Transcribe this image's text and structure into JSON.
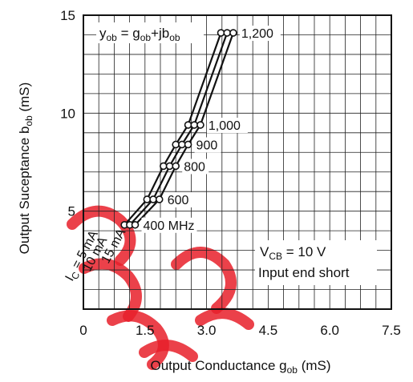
{
  "chart_data": {
    "type": "line",
    "xlabel": "Output Conductance  g",
    "xlabel_sub": "ob",
    "xlabel_unit": "  (mS)",
    "ylabel": "Output Suceptance  b",
    "ylabel_sub": "ob",
    "ylabel_unit": "  (mS)",
    "xlim": [
      0,
      7.5
    ],
    "ylim": [
      0,
      15
    ],
    "x_ticks": [
      0,
      1.5,
      3.0,
      4.5,
      6.0,
      7.5
    ],
    "x_tick_labels": [
      "0",
      "1.5",
      "3.0",
      "4.5",
      "6.0",
      "7.5"
    ],
    "y_ticks": [
      5,
      10,
      15
    ],
    "y_tick_labels": [
      "5",
      "10",
      "15"
    ],
    "grid": true,
    "formula": {
      "main": "y",
      "s1": "ob",
      "eq": " = g",
      "s2": "ob",
      "plus": "+jb",
      "s3": "ob"
    },
    "condition": {
      "main": "V",
      "sub": "CB",
      "rest": " = 10 V"
    },
    "condition2": "Input end short",
    "series": [
      {
        "name": "I",
        "name_sub": "C",
        "name_rest": " = 5 mA",
        "points": [
          [
            1.0,
            4.3
          ],
          [
            1.55,
            5.6
          ],
          [
            1.95,
            7.3
          ],
          [
            2.25,
            8.4
          ],
          [
            2.55,
            9.4
          ],
          [
            3.35,
            14.1
          ]
        ]
      },
      {
        "name": "10 mA",
        "points": [
          [
            1.13,
            4.3
          ],
          [
            1.7,
            5.6
          ],
          [
            2.1,
            7.3
          ],
          [
            2.4,
            8.4
          ],
          [
            2.7,
            9.4
          ],
          [
            3.5,
            14.1
          ]
        ]
      },
      {
        "name": "15 mA",
        "points": [
          [
            1.26,
            4.3
          ],
          [
            1.85,
            5.6
          ],
          [
            2.25,
            7.3
          ],
          [
            2.55,
            8.4
          ],
          [
            2.85,
            9.4
          ],
          [
            3.65,
            14.1
          ]
        ]
      }
    ],
    "frequency_labels": [
      "400 MHz",
      "600",
      "800",
      "900",
      "1,000",
      "1,200"
    ],
    "colors": {
      "line": "#111111",
      "grid": "#222222",
      "watermark": "#e8202a"
    }
  }
}
